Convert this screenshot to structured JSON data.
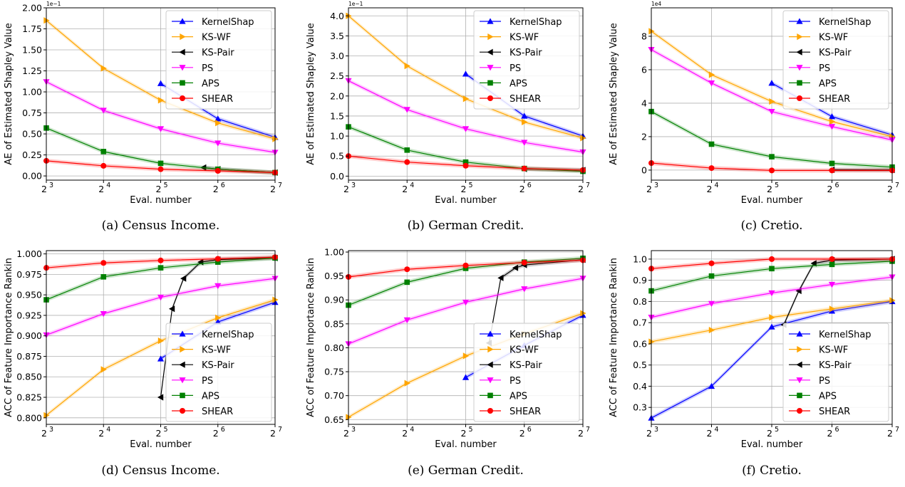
{
  "chart_data": [
    {
      "type": "line",
      "caption": "(a) Census Income.",
      "xlabel": "Eval. number",
      "ylabel": "AE of Estimated Shapley Value",
      "exponent": "1e−1",
      "xlim": [
        3,
        7
      ],
      "ylim": [
        -0.05,
        2.0
      ],
      "yticks": [
        "0.00",
        "0.25",
        "0.50",
        "0.75",
        "1.00",
        "1.25",
        "1.50",
        "1.75",
        "2.00"
      ],
      "ytick_values": [
        0,
        0.25,
        0.5,
        0.75,
        1.0,
        1.25,
        1.5,
        1.75,
        2.0
      ],
      "xticks": [
        3,
        4,
        5,
        6,
        7
      ],
      "legend": "upper-right",
      "grid": true,
      "series": [
        {
          "name": "KernelShap",
          "x": [
            5,
            6,
            7
          ],
          "y": [
            1.1,
            0.68,
            0.46
          ]
        },
        {
          "name": "KS-WF",
          "x": [
            3,
            4,
            5,
            6,
            7
          ],
          "y": [
            1.85,
            1.28,
            0.9,
            0.63,
            0.44
          ]
        },
        {
          "name": "KS-Pair",
          "x": [
            5.75,
            6,
            7
          ],
          "y": [
            0.1,
            0.08,
            0.04
          ]
        },
        {
          "name": "PS",
          "x": [
            3,
            4,
            5,
            6,
            7
          ],
          "y": [
            1.12,
            0.78,
            0.56,
            0.39,
            0.28
          ]
        },
        {
          "name": "APS",
          "x": [
            3,
            4,
            5,
            6,
            7
          ],
          "y": [
            0.57,
            0.29,
            0.15,
            0.08,
            0.04
          ]
        },
        {
          "name": "SHEAR",
          "x": [
            3,
            4,
            5,
            6,
            7
          ],
          "y": [
            0.18,
            0.12,
            0.08,
            0.06,
            0.04
          ]
        }
      ]
    },
    {
      "type": "line",
      "caption": "(b) German Credit.",
      "xlabel": "Eval. number",
      "ylabel": "AE of Estimated Shapley Value",
      "exponent": "1e−1",
      "xlim": [
        3,
        7
      ],
      "ylim": [
        -0.1,
        4.2
      ],
      "yticks": [
        "0.0",
        "0.5",
        "1.0",
        "1.5",
        "2.0",
        "2.5",
        "3.0",
        "3.5",
        "4.0"
      ],
      "ytick_values": [
        0,
        0.5,
        1.0,
        1.5,
        2.0,
        2.5,
        3.0,
        3.5,
        4.0
      ],
      "xticks": [
        3,
        4,
        5,
        6,
        7
      ],
      "legend": "upper-right",
      "grid": true,
      "series": [
        {
          "name": "KernelShap",
          "x": [
            5,
            6,
            7
          ],
          "y": [
            2.55,
            1.5,
            1.0
          ]
        },
        {
          "name": "KS-WF",
          "x": [
            3,
            4,
            5,
            6,
            7
          ],
          "y": [
            4.0,
            2.75,
            1.93,
            1.35,
            0.95
          ]
        },
        {
          "name": "KS-Pair",
          "x": [
            6,
            7
          ],
          "y": [
            0.18,
            0.15
          ]
        },
        {
          "name": "PS",
          "x": [
            3,
            4,
            5,
            6,
            7
          ],
          "y": [
            2.38,
            1.66,
            1.18,
            0.84,
            0.6
          ]
        },
        {
          "name": "APS",
          "x": [
            3,
            4,
            5,
            6,
            7
          ],
          "y": [
            1.23,
            0.65,
            0.35,
            0.19,
            0.12
          ]
        },
        {
          "name": "SHEAR",
          "x": [
            3,
            4,
            5,
            6,
            7
          ],
          "y": [
            0.5,
            0.35,
            0.26,
            0.19,
            0.15
          ]
        }
      ]
    },
    {
      "type": "line",
      "caption": "(c) Cretio.",
      "xlabel": "Eval. number",
      "ylabel": "AE of Estimated Shapley Value",
      "exponent": "1e4",
      "xlim": [
        3,
        7
      ],
      "ylim": [
        -0.6,
        9.7
      ],
      "yticks": [
        "0",
        "2",
        "4",
        "6",
        "8"
      ],
      "ytick_values": [
        0,
        2,
        4,
        6,
        8
      ],
      "xticks": [
        3,
        4,
        5,
        6,
        7
      ],
      "legend": "upper-right",
      "grid": true,
      "series": [
        {
          "name": "KernelShap",
          "x": [
            5,
            6,
            7
          ],
          "y": [
            5.2,
            3.2,
            2.1
          ]
        },
        {
          "name": "KS-WF",
          "x": [
            3,
            4,
            5,
            6,
            7
          ],
          "y": [
            8.3,
            5.7,
            4.1,
            2.9,
            2.0
          ]
        },
        {
          "name": "KS-Pair",
          "x": [
            6,
            7
          ],
          "y": [
            0.02,
            0.01
          ]
        },
        {
          "name": "PS",
          "x": [
            3,
            4,
            5,
            6,
            7
          ],
          "y": [
            7.2,
            5.2,
            3.5,
            2.6,
            1.8
          ]
        },
        {
          "name": "APS",
          "x": [
            3,
            4,
            5,
            6,
            7
          ],
          "y": [
            3.5,
            1.55,
            0.8,
            0.4,
            0.18
          ]
        },
        {
          "name": "SHEAR",
          "x": [
            3,
            4,
            5,
            6,
            7
          ],
          "y": [
            0.42,
            0.12,
            -0.02,
            -0.02,
            -0.02
          ]
        }
      ]
    },
    {
      "type": "line",
      "caption": "(d) Census Income.",
      "xlabel": "Eval. number",
      "ylabel": "ACC of Feature Importance Rankin",
      "exponent": "",
      "xlim": [
        3,
        7
      ],
      "ylim": [
        0.792,
        1.004
      ],
      "yticks": [
        "0.800",
        "0.825",
        "0.850",
        "0.875",
        "0.900",
        "0.925",
        "0.950",
        "0.975",
        "1.000"
      ],
      "ytick_values": [
        0.8,
        0.825,
        0.85,
        0.875,
        0.9,
        0.925,
        0.95,
        0.975,
        1.0
      ],
      "xticks": [
        3,
        4,
        5,
        6,
        7
      ],
      "legend": "lower-right",
      "grid": true,
      "series": [
        {
          "name": "KernelShap",
          "x": [
            5,
            6,
            7
          ],
          "y": [
            0.872,
            0.917,
            0.941
          ]
        },
        {
          "name": "KS-WF",
          "x": [
            3,
            4,
            5,
            6,
            7
          ],
          "y": [
            0.803,
            0.859,
            0.894,
            0.922,
            0.944
          ]
        },
        {
          "name": "KS-Pair",
          "x": [
            5,
            5.2,
            5.4,
            5.7,
            6,
            7
          ],
          "y": [
            0.825,
            0.933,
            0.97,
            0.99,
            0.993,
            0.995
          ]
        },
        {
          "name": "PS",
          "x": [
            3,
            4,
            5,
            6,
            7
          ],
          "y": [
            0.901,
            0.927,
            0.947,
            0.961,
            0.97
          ]
        },
        {
          "name": "APS",
          "x": [
            3,
            4,
            5,
            6,
            7
          ],
          "y": [
            0.944,
            0.972,
            0.983,
            0.99,
            0.995
          ]
        },
        {
          "name": "SHEAR",
          "x": [
            3,
            4,
            5,
            6,
            7
          ],
          "y": [
            0.983,
            0.989,
            0.992,
            0.994,
            0.996
          ]
        }
      ]
    },
    {
      "type": "line",
      "caption": "(e) German Credit.",
      "xlabel": "Eval. number",
      "ylabel": "ACC of Feature Importance Rankin",
      "exponent": "",
      "xlim": [
        3,
        7
      ],
      "ylim": [
        0.64,
        1.003
      ],
      "yticks": [
        "0.65",
        "0.70",
        "0.75",
        "0.80",
        "0.85",
        "0.90",
        "0.95",
        "1.00"
      ],
      "ytick_values": [
        0.65,
        0.7,
        0.75,
        0.8,
        0.85,
        0.9,
        0.95,
        1.0
      ],
      "xticks": [
        3,
        4,
        5,
        6,
        7
      ],
      "legend": "lower-right",
      "grid": true,
      "series": [
        {
          "name": "KernelShap",
          "x": [
            5,
            6,
            7
          ],
          "y": [
            0.738,
            0.805,
            0.868
          ]
        },
        {
          "name": "KS-WF",
          "x": [
            3,
            4,
            5,
            6,
            7
          ],
          "y": [
            0.655,
            0.726,
            0.783,
            0.829,
            0.872
          ]
        },
        {
          "name": "KS-Pair",
          "x": [
            5.4,
            5.6,
            5.85,
            6,
            7
          ],
          "y": [
            0.81,
            0.946,
            0.967,
            0.973,
            0.984
          ]
        },
        {
          "name": "PS",
          "x": [
            3,
            4,
            5,
            6,
            7
          ],
          "y": [
            0.808,
            0.858,
            0.895,
            0.923,
            0.945
          ]
        },
        {
          "name": "APS",
          "x": [
            3,
            4,
            5,
            6,
            7
          ],
          "y": [
            0.889,
            0.937,
            0.966,
            0.979,
            0.987
          ]
        },
        {
          "name": "SHEAR",
          "x": [
            3,
            4,
            5,
            6,
            7
          ],
          "y": [
            0.948,
            0.964,
            0.972,
            0.978,
            0.983
          ]
        }
      ]
    },
    {
      "type": "line",
      "caption": "(f) Cretio.",
      "xlabel": "Eval. number",
      "ylabel": "ACC of Feature Importance Rankin",
      "exponent": "",
      "xlim": [
        3,
        7
      ],
      "ylim": [
        0.22,
        1.04
      ],
      "yticks": [
        "0.3",
        "0.4",
        "0.5",
        "0.6",
        "0.7",
        "0.8",
        "0.9",
        "1.0"
      ],
      "ytick_values": [
        0.3,
        0.4,
        0.5,
        0.6,
        0.7,
        0.8,
        0.9,
        1.0
      ],
      "xticks": [
        3,
        4,
        5,
        6,
        7
      ],
      "legend": "lower-right",
      "grid": true,
      "series": [
        {
          "name": "KernelShap",
          "x": [
            3,
            4,
            5,
            6,
            7
          ],
          "y": [
            0.25,
            0.4,
            0.68,
            0.755,
            0.8
          ]
        },
        {
          "name": "KS-WF",
          "x": [
            3,
            4,
            5,
            6,
            7
          ],
          "y": [
            0.61,
            0.665,
            0.725,
            0.765,
            0.805
          ]
        },
        {
          "name": "KS-Pair",
          "x": [
            5.2,
            5.45,
            5.7,
            6,
            7
          ],
          "y": [
            0.69,
            0.85,
            0.98,
            0.995,
            1.0
          ]
        },
        {
          "name": "PS",
          "x": [
            3,
            4,
            5,
            6,
            7
          ],
          "y": [
            0.725,
            0.79,
            0.84,
            0.88,
            0.915
          ]
        },
        {
          "name": "APS",
          "x": [
            3,
            4,
            5,
            6,
            7
          ],
          "y": [
            0.85,
            0.92,
            0.955,
            0.975,
            0.99
          ]
        },
        {
          "name": "SHEAR",
          "x": [
            3,
            4,
            5,
            6,
            7
          ],
          "y": [
            0.955,
            0.98,
            1.0,
            1.0,
            1.0
          ]
        }
      ]
    }
  ],
  "series_styles": {
    "KernelShap": {
      "color": "#0000ff",
      "marker": "triangle-up"
    },
    "KS-WF": {
      "color": "#ffa500",
      "marker": "triangle-right"
    },
    "KS-Pair": {
      "color": "#000000",
      "marker": "triangle-left"
    },
    "PS": {
      "color": "#ff00ff",
      "marker": "triangle-down"
    },
    "APS": {
      "color": "#008000",
      "marker": "square"
    },
    "SHEAR": {
      "color": "#ff0000",
      "marker": "circle"
    }
  }
}
